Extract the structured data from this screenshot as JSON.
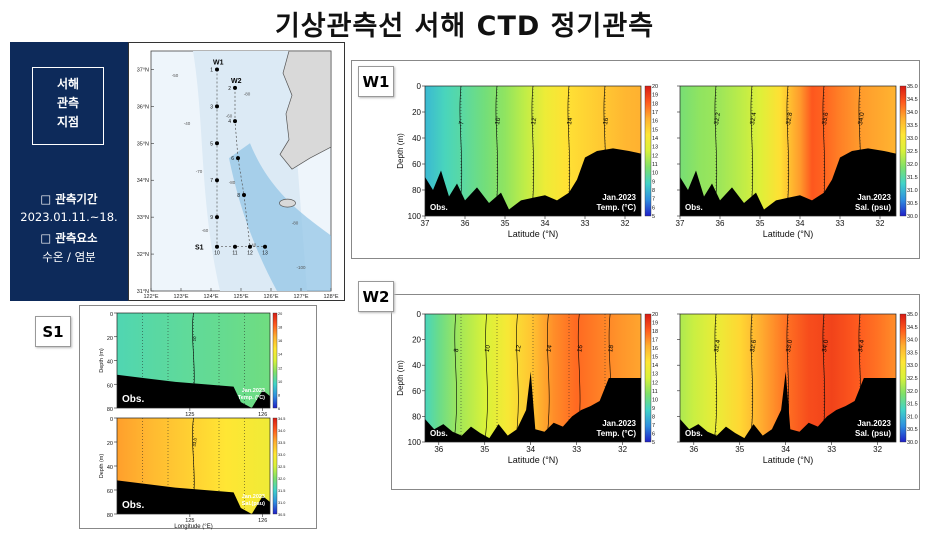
{
  "page": {
    "title": "기상관측선 서해 CTD 정기관측"
  },
  "info_box": {
    "heading_lines": [
      "서해",
      "관측",
      "지점"
    ],
    "period_label": "□ 관측기간",
    "period_value": "2023.01.11.~18.",
    "elements_label": "□ 관측요소",
    "elements_value": "수온 / 염분"
  },
  "map": {
    "lat_ticks": [
      "37°N",
      "36°N",
      "35°N",
      "34°N",
      "33°N",
      "32°N",
      "31°N"
    ],
    "lon_ticks": [
      "122°E",
      "123°E",
      "124°E",
      "125°E",
      "126°E",
      "127°E",
      "128°E"
    ],
    "line_labels": [
      "W1",
      "W2",
      "S1"
    ],
    "station_numbers": [
      "1",
      "2",
      "3",
      "4",
      "5",
      "6",
      "7",
      "8",
      "9",
      "10",
      "11",
      "12",
      "13"
    ],
    "contour_labels": [
      "-50",
      "-40",
      "-60",
      "-80",
      "-70",
      "-80",
      "-60",
      "-40",
      "-80",
      "-100"
    ]
  },
  "sections": {
    "w1_tag": "W1",
    "w2_tag": "W2",
    "s1_tag": "S1"
  },
  "colors": {
    "info_bg": "#0d2a5a",
    "land": "#000000",
    "sea_shallow": "#dceaf5",
    "sea_deep": "#8fc3e6",
    "colormap": [
      "#1f1fc8",
      "#2f8fe0",
      "#41d3c9",
      "#7ee06a",
      "#d8f23a",
      "#ffe634",
      "#ffb030",
      "#ff5a1e",
      "#d81a14"
    ]
  },
  "chart_data": [
    {
      "id": "w1-temp",
      "type": "heatmap",
      "xlabel": "Latitude (°N)",
      "ylabel": "Depth (m)",
      "x_ticks": [
        "37",
        "36",
        "35",
        "34",
        "33",
        "32"
      ],
      "y_ticks": [
        "0",
        "20",
        "40",
        "60",
        "80",
        "100"
      ],
      "xlim": [
        37,
        31.6
      ],
      "ylim": [
        0,
        100
      ],
      "left_label": "Obs.",
      "right_label_lines": [
        "Jan.2023",
        "Temp. (°C)"
      ],
      "colorbar_ticks": [
        "20",
        "19",
        "18",
        "17",
        "16",
        "15",
        "14",
        "13",
        "12",
        "11",
        "10",
        "9",
        "8",
        "7",
        "6",
        "5"
      ],
      "colorbar_range": [
        5,
        20
      ],
      "contour_labels": [
        "7",
        "10",
        "12",
        "14",
        "16"
      ],
      "field_x": [
        37,
        36.5,
        36,
        35.5,
        35,
        34.5,
        34,
        33.5,
        33,
        32.5,
        32,
        31.6
      ],
      "field_values": [
        8.0,
        9.0,
        9.6,
        10.3,
        11.0,
        12.0,
        13.5,
        14.5,
        15.0,
        15.5,
        16.0,
        16.2
      ],
      "bottom_depth": [
        [
          37,
          70
        ],
        [
          36.8,
          80
        ],
        [
          36.6,
          65
        ],
        [
          36.4,
          85
        ],
        [
          36.2,
          75
        ],
        [
          36,
          88
        ],
        [
          35.7,
          78
        ],
        [
          35.4,
          90
        ],
        [
          35.1,
          82
        ],
        [
          34.9,
          95
        ],
        [
          34.6,
          88
        ],
        [
          34.3,
          86
        ],
        [
          34.0,
          84
        ],
        [
          33.7,
          88
        ],
        [
          33.4,
          82
        ],
        [
          33.2,
          72
        ],
        [
          33.0,
          55
        ],
        [
          32.7,
          50
        ],
        [
          32.3,
          48
        ],
        [
          31.9,
          50
        ],
        [
          31.6,
          52
        ]
      ]
    },
    {
      "id": "w1-sal",
      "type": "heatmap",
      "xlabel": "Latitude (°N)",
      "ylabel": "",
      "x_ticks": [
        "37",
        "36",
        "35",
        "34",
        "33",
        "32"
      ],
      "y_ticks": [],
      "xlim": [
        37,
        31.6
      ],
      "ylim": [
        0,
        100
      ],
      "left_label": "Obs.",
      "right_label_lines": [
        "Jan.2023",
        "Sal. (psu)"
      ],
      "colorbar_ticks": [
        "35.0",
        "34.5",
        "34.0",
        "33.5",
        "33.0",
        "32.5",
        "32.0",
        "31.5",
        "31.0",
        "30.5",
        "30.0"
      ],
      "colorbar_range": [
        30,
        35
      ],
      "contour_labels": [
        "32.2",
        "32.4",
        "32.8",
        "33.6",
        "34.0"
      ],
      "field_x": [
        37,
        36.5,
        36,
        35.5,
        35,
        34.5,
        34,
        33.7,
        33.4,
        33,
        32.5,
        31.6
      ],
      "field_values": [
        31.8,
        32.0,
        32.1,
        32.3,
        32.6,
        33.2,
        33.9,
        34.4,
        34.3,
        34.1,
        33.9,
        33.7
      ],
      "bottom_depth": [
        [
          37,
          70
        ],
        [
          36.8,
          80
        ],
        [
          36.6,
          65
        ],
        [
          36.4,
          85
        ],
        [
          36.2,
          75
        ],
        [
          36,
          88
        ],
        [
          35.7,
          78
        ],
        [
          35.4,
          90
        ],
        [
          35.1,
          82
        ],
        [
          34.9,
          95
        ],
        [
          34.6,
          88
        ],
        [
          34.3,
          86
        ],
        [
          34.0,
          84
        ],
        [
          33.7,
          88
        ],
        [
          33.4,
          82
        ],
        [
          33.2,
          72
        ],
        [
          33.0,
          55
        ],
        [
          32.7,
          50
        ],
        [
          32.3,
          48
        ],
        [
          31.9,
          50
        ],
        [
          31.6,
          52
        ]
      ]
    },
    {
      "id": "w2-temp",
      "type": "heatmap",
      "xlabel": "Latitude (°N)",
      "ylabel": "Depth (m)",
      "x_ticks": [
        "36",
        "35",
        "34",
        "33",
        "32"
      ],
      "y_ticks": [
        "0",
        "20",
        "40",
        "60",
        "80",
        "100"
      ],
      "xlim": [
        36.3,
        31.6
      ],
      "ylim": [
        0,
        100
      ],
      "left_label": "Obs.",
      "right_label_lines": [
        "Jan.2023",
        "Temp. (°C)"
      ],
      "colorbar_ticks": [
        "20",
        "19",
        "18",
        "17",
        "16",
        "15",
        "14",
        "13",
        "12",
        "11",
        "10",
        "9",
        "8",
        "7",
        "6",
        "5"
      ],
      "colorbar_range": [
        5,
        20
      ],
      "contour_labels": [
        "8",
        "10",
        "12",
        "14",
        "16",
        "18"
      ],
      "field_x": [
        36.3,
        36,
        35.5,
        35,
        34.5,
        34,
        33.5,
        33,
        32.5,
        32,
        31.6
      ],
      "field_values": [
        9.0,
        10.0,
        11.5,
        12.5,
        14.0,
        15.5,
        17.0,
        17.8,
        17.3,
        16.8,
        16.5
      ],
      "bottom_depth": [
        [
          36.3,
          82
        ],
        [
          36.1,
          90
        ],
        [
          35.9,
          86
        ],
        [
          35.7,
          92
        ],
        [
          35.5,
          95
        ],
        [
          35.3,
          88
        ],
        [
          35.1,
          93
        ],
        [
          34.9,
          97
        ],
        [
          34.7,
          86
        ],
        [
          34.5,
          95
        ],
        [
          34.3,
          90
        ],
        [
          34.1,
          75
        ],
        [
          34.0,
          45
        ],
        [
          33.9,
          90
        ],
        [
          33.7,
          92
        ],
        [
          33.5,
          85
        ],
        [
          33.3,
          88
        ],
        [
          33.1,
          80
        ],
        [
          32.9,
          75
        ],
        [
          32.7,
          72
        ],
        [
          32.5,
          68
        ],
        [
          32.3,
          50
        ],
        [
          31.6,
          50
        ]
      ]
    },
    {
      "id": "w2-sal",
      "type": "heatmap",
      "xlabel": "Latitude (°N)",
      "ylabel": "",
      "x_ticks": [
        "36",
        "35",
        "34",
        "33",
        "32"
      ],
      "y_ticks": [],
      "xlim": [
        36.3,
        31.6
      ],
      "ylim": [
        0,
        100
      ],
      "left_label": "Obs.",
      "right_label_lines": [
        "Jan.2023",
        "Sal. (psu)"
      ],
      "colorbar_ticks": [
        "35.0",
        "34.5",
        "34.0",
        "33.5",
        "33.0",
        "32.5",
        "32.0",
        "31.5",
        "31.0",
        "30.5",
        "30.0"
      ],
      "colorbar_range": [
        30,
        35
      ],
      "contour_labels": [
        "32.4",
        "32.6",
        "33.0",
        "34.0",
        "34.4"
      ],
      "field_x": [
        36.3,
        36,
        35.5,
        35,
        34.5,
        34,
        33.5,
        33,
        32.5,
        32,
        31.6
      ],
      "field_values": [
        32.2,
        32.4,
        32.8,
        33.3,
        33.8,
        34.2,
        34.5,
        34.6,
        34.4,
        34.2,
        34.0
      ],
      "bottom_depth": [
        [
          36.3,
          82
        ],
        [
          36.1,
          90
        ],
        [
          35.9,
          86
        ],
        [
          35.7,
          92
        ],
        [
          35.5,
          95
        ],
        [
          35.3,
          88
        ],
        [
          35.1,
          93
        ],
        [
          34.9,
          97
        ],
        [
          34.7,
          86
        ],
        [
          34.5,
          95
        ],
        [
          34.3,
          90
        ],
        [
          34.1,
          75
        ],
        [
          34.0,
          45
        ],
        [
          33.9,
          90
        ],
        [
          33.7,
          92
        ],
        [
          33.5,
          85
        ],
        [
          33.3,
          88
        ],
        [
          33.1,
          80
        ],
        [
          32.9,
          75
        ],
        [
          32.7,
          72
        ],
        [
          32.5,
          68
        ],
        [
          32.3,
          50
        ],
        [
          31.6,
          50
        ]
      ]
    },
    {
      "id": "s1-temp",
      "type": "heatmap",
      "xlabel": "",
      "ylabel": "Depth (m)",
      "x_ticks": [
        "125",
        "126"
      ],
      "y_ticks": [
        "0",
        "20",
        "40",
        "60",
        "80"
      ],
      "xlim": [
        124.0,
        126.1
      ],
      "ylim": [
        0,
        80
      ],
      "left_label": "Obs.",
      "right_label_lines": [
        "Jan.2023",
        "Temp. (°C)"
      ],
      "colorbar_ticks": [
        "20",
        "18",
        "16",
        "14",
        "12",
        "10",
        "8",
        "6"
      ],
      "colorbar_range": [
        5,
        20
      ],
      "contour_labels": [
        "10"
      ],
      "field_x": [
        124.0,
        124.5,
        125.0,
        125.5,
        126.1
      ],
      "field_values": [
        9.2,
        9.5,
        9.7,
        9.9,
        10.2
      ],
      "bottom_depth": [
        [
          124.0,
          52
        ],
        [
          124.4,
          55
        ],
        [
          124.8,
          58
        ],
        [
          125.2,
          60
        ],
        [
          125.6,
          62
        ],
        [
          125.7,
          75
        ],
        [
          125.85,
          82
        ],
        [
          126.0,
          65
        ],
        [
          126.1,
          70
        ]
      ]
    },
    {
      "id": "s1-sal",
      "type": "heatmap",
      "xlabel": "Longitude (°E)",
      "ylabel": "Depth (m)",
      "x_ticks": [
        "125",
        "126"
      ],
      "y_ticks": [
        "0",
        "20",
        "40",
        "60",
        "80"
      ],
      "xlim": [
        124.0,
        126.1
      ],
      "ylim": [
        0,
        80
      ],
      "left_label": "Obs.",
      "right_label_lines": [
        "Jan.2023",
        "Sal.(psu)"
      ],
      "colorbar_ticks": [
        "34.5",
        "34.0",
        "33.5",
        "33.0",
        "32.5",
        "32.0",
        "31.5",
        "31.0",
        "30.5"
      ],
      "colorbar_range": [
        30.5,
        34.5
      ],
      "contour_labels": [
        "33.0"
      ],
      "field_x": [
        124.0,
        124.5,
        125.0,
        125.5,
        126.1
      ],
      "field_values": [
        33.6,
        33.4,
        33.2,
        33.0,
        32.8
      ],
      "bottom_depth": [
        [
          124.0,
          52
        ],
        [
          124.4,
          55
        ],
        [
          124.8,
          58
        ],
        [
          125.2,
          60
        ],
        [
          125.6,
          62
        ],
        [
          125.7,
          75
        ],
        [
          125.85,
          82
        ],
        [
          126.0,
          65
        ],
        [
          126.1,
          70
        ]
      ]
    }
  ]
}
